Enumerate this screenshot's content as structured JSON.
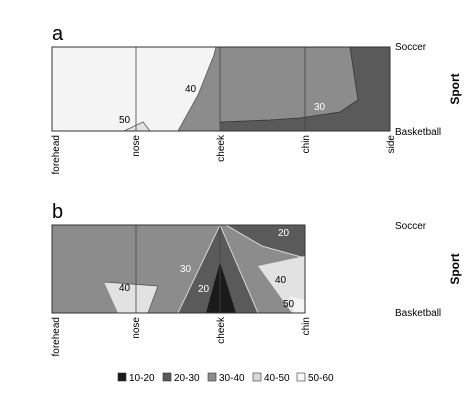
{
  "chart_data": [
    {
      "type": "heatmap",
      "panel": "a",
      "title": "",
      "xlabel": "",
      "ylabel": "Sport",
      "x_categories": [
        "forehead",
        "nose",
        "cheek",
        "chin",
        "side"
      ],
      "y_categories": [
        "Soccer",
        "Basketball"
      ],
      "contour_labels": [
        "50",
        "40",
        "30"
      ],
      "region_levels": [
        "50-60",
        "40-50",
        "30-40",
        "20-30"
      ]
    },
    {
      "type": "heatmap",
      "panel": "b",
      "title": "",
      "xlabel": "",
      "ylabel": "Sport",
      "x_categories": [
        "forehead",
        "nose",
        "cheek",
        "chin"
      ],
      "y_categories": [
        "Soccer",
        "Basketball"
      ],
      "contour_labels": [
        "20",
        "30",
        "40",
        "20",
        "40",
        "50"
      ],
      "region_levels": [
        "30-40",
        "40-50",
        "20-30",
        "10-20",
        "50-60"
      ]
    }
  ],
  "legend": {
    "items": [
      {
        "label": "10-20",
        "color": "#1a1a1a"
      },
      {
        "label": "20-30",
        "color": "#5a5a5a"
      },
      {
        "label": "30-40",
        "color": "#8c8c8c"
      },
      {
        "label": "40-50",
        "color": "#d9d9d9"
      },
      {
        "label": "50-60",
        "color": "#f7f7f7"
      }
    ]
  },
  "colors": {
    "level_10_20": "#1a1a1a",
    "level_20_30": "#5a5a5a",
    "level_30_40": "#8c8c8c",
    "level_40_50": "#e2e2e2",
    "level_50_60": "#f4f4f4"
  }
}
